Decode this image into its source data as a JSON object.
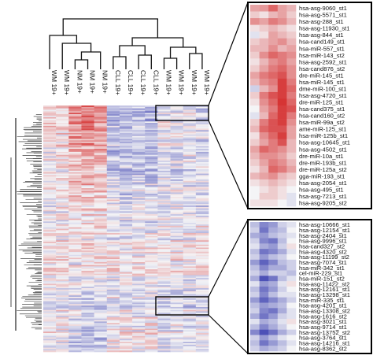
{
  "chart_data": {
    "type": "heatmap",
    "title": "",
    "xlabel": "",
    "ylabel": "",
    "columns": [
      "WM 19+",
      "WM 19+",
      "NM 19+",
      "NM 19+",
      "NM 19+",
      "CLL 19+",
      "CLL 19+",
      "CLL 19+",
      "CLL 19+",
      "WM 19+",
      "WM 19+",
      "WM 19+",
      "WM 19+"
    ],
    "color_scale": {
      "low": "#3a3fb0",
      "mid": "#f4f4f6",
      "high": "#d42a2a"
    },
    "main_row_count": 170,
    "column_profile": [
      0.1,
      0.15,
      0.5,
      0.62,
      0.48,
      -0.32,
      -0.38,
      -0.3,
      -0.42,
      -0.1,
      -0.18,
      -0.06,
      -0.22
    ],
    "zoom_top": {
      "rows": [
        "hsa-asg-9060_st1",
        "hsa-asg-5571_st1",
        "hsa-asg-288_st1",
        "hsa-asg-11930_st1",
        "hsa-asg-844_st1",
        "hsa-cand149_st1",
        "hsa-miR-557_st1",
        "hsa-miR-143_st2",
        "hsa-asg-2592_st1",
        "hsa-cand876_st2",
        "dre-miR-145_st1",
        "hsa-miR-145_st1",
        "dme-miR-100_st1",
        "hsa-asg-4720_st1",
        "dre-miR-125_st1",
        "hsa-cand375_st1",
        "hsa-cand160_st2",
        "hsa-miR-99a_st2",
        "ame-miR-125_st1",
        "hsa-miR-125b_st1",
        "hsa-asg-10645_st1",
        "hsa-asg-4502_st1",
        "dre-miR-10a_st1",
        "dre-miR-193b_st1",
        "dre-miR-125a_st2",
        "gga-miR-193_st1",
        "hsa-asg-2054_st1",
        "hsa-asg-495_st1",
        "hsa-asg-7213_st1",
        "hsa-asg-9205_st2"
      ],
      "values": [
        [
          0.4,
          0.45,
          0.7,
          0.4,
          0.3
        ],
        [
          0.2,
          0.1,
          0.3,
          0.4,
          0.2
        ],
        [
          0.5,
          0.4,
          0.6,
          0.5,
          0.3
        ],
        [
          0.1,
          0.2,
          0.3,
          0.2,
          0.1
        ],
        [
          -0.1,
          0.1,
          0.4,
          0.3,
          0.2
        ],
        [
          0.2,
          0.3,
          0.4,
          0.5,
          0.3
        ],
        [
          0.3,
          0.3,
          0.5,
          0.3,
          0.4
        ],
        [
          0.2,
          0.5,
          0.7,
          0.6,
          0.5
        ],
        [
          0.1,
          0.3,
          0.5,
          0.6,
          0.4
        ],
        [
          0.2,
          0.4,
          0.6,
          0.7,
          0.5
        ],
        [
          0.4,
          0.6,
          0.7,
          0.8,
          0.5
        ],
        [
          0.3,
          0.5,
          0.6,
          0.9,
          0.6
        ],
        [
          -0.2,
          0.3,
          0.5,
          0.9,
          0.7
        ],
        [
          0.2,
          0.6,
          0.8,
          0.9,
          0.6
        ],
        [
          0.1,
          0.5,
          0.7,
          0.95,
          0.7
        ],
        [
          0.0,
          0.4,
          0.6,
          0.9,
          0.8
        ],
        [
          -0.1,
          0.3,
          0.7,
          0.9,
          0.6
        ],
        [
          0.2,
          0.6,
          0.8,
          0.9,
          0.5
        ],
        [
          0.3,
          0.7,
          0.8,
          0.8,
          0.4
        ],
        [
          0.1,
          0.5,
          0.7,
          0.9,
          0.4
        ],
        [
          0.2,
          0.4,
          0.6,
          0.8,
          0.3
        ],
        [
          0.4,
          0.7,
          0.6,
          0.5,
          0.3
        ],
        [
          0.3,
          0.5,
          0.5,
          0.4,
          0.2
        ],
        [
          0.2,
          0.4,
          0.6,
          0.5,
          0.3
        ],
        [
          0.1,
          0.3,
          0.7,
          0.6,
          0.4
        ],
        [
          0.3,
          0.4,
          0.5,
          0.3,
          0.2
        ],
        [
          0.1,
          0.2,
          0.3,
          0.2,
          0.1
        ],
        [
          0.0,
          0.1,
          0.2,
          0.1,
          0.0
        ],
        [
          0.0,
          0.2,
          0.2,
          0.1,
          -0.1
        ],
        [
          0.1,
          0.1,
          0.1,
          0.0,
          -0.1
        ]
      ]
    },
    "zoom_bottom": {
      "rows": [
        "hsa-asg-10666_st1",
        "hsa-asg-12154_st1",
        "hsa-asg-2404_st1",
        "hsa-asg-9996_st1",
        "hsa-cand327_st2",
        "hsa-asg-4320_st2",
        "hsa-asg-11199_st2",
        "hsa-asg-7074_st1",
        "hsa-miR-342_st1",
        "cel-miR-229_st1",
        "hsa-miR-151_st2",
        "hsa-asg-11422_st2",
        "hsa-asg-12161_st1",
        "hsa-asg-13298_st1",
        "hsa-miR-335_st1",
        "hsa-asg-4201_st1",
        "hsa-asg-13308_st2",
        "hsa-asg-1616_st2",
        "hsa-asg-3021_st1",
        "hsa-asg-9714_st1",
        "hsa-asg-13752_st2",
        "hsa-asg-3764_st1",
        "hsa-asg-14216_st1",
        "hsa-asg-8362_st2"
      ],
      "values": [
        [
          -0.3,
          -0.6,
          -0.5,
          -0.2,
          -0.1
        ],
        [
          -0.2,
          -0.7,
          -0.4,
          -0.3,
          0.0
        ],
        [
          -0.4,
          -0.5,
          -0.3,
          -0.2,
          -0.1
        ],
        [
          -0.2,
          -0.6,
          -0.7,
          -0.3,
          0.0
        ],
        [
          -0.1,
          -0.4,
          -0.5,
          -0.2,
          0.1
        ],
        [
          -0.3,
          -0.7,
          -0.6,
          -0.4,
          -0.1
        ],
        [
          -0.2,
          -0.5,
          -0.3,
          -0.2,
          0.0
        ],
        [
          -0.5,
          -0.8,
          -0.6,
          -0.3,
          -0.2
        ],
        [
          -0.3,
          -0.6,
          -0.4,
          -0.4,
          -0.2
        ],
        [
          -0.2,
          -0.4,
          -0.2,
          -0.2,
          -0.3
        ],
        [
          -0.4,
          -0.9,
          -0.7,
          -0.3,
          -0.1
        ],
        [
          -0.1,
          -0.5,
          -0.4,
          -0.1,
          0.1
        ],
        [
          -0.3,
          -0.7,
          -0.5,
          -0.2,
          0.0
        ],
        [
          -0.2,
          -0.6,
          -0.3,
          -0.1,
          -0.1
        ],
        [
          -0.5,
          -0.8,
          -0.6,
          -0.4,
          -0.2
        ],
        [
          -0.3,
          -0.5,
          -0.4,
          -0.3,
          0.0
        ],
        [
          -0.2,
          -0.6,
          -0.7,
          -0.4,
          -0.1
        ],
        [
          -0.4,
          -0.7,
          -0.5,
          -0.2,
          -0.1
        ],
        [
          -0.1,
          -0.4,
          -0.3,
          -0.1,
          0.1
        ],
        [
          -0.3,
          -0.6,
          -0.4,
          -0.2,
          0.0
        ],
        [
          -0.6,
          -0.9,
          -0.7,
          -0.4,
          -0.2
        ],
        [
          -0.2,
          -0.5,
          -0.3,
          -0.1,
          0.0
        ],
        [
          -0.3,
          -0.7,
          -0.5,
          -0.3,
          -0.1
        ],
        [
          -0.2,
          -0.4,
          -0.3,
          -0.2,
          0.0
        ]
      ]
    }
  }
}
